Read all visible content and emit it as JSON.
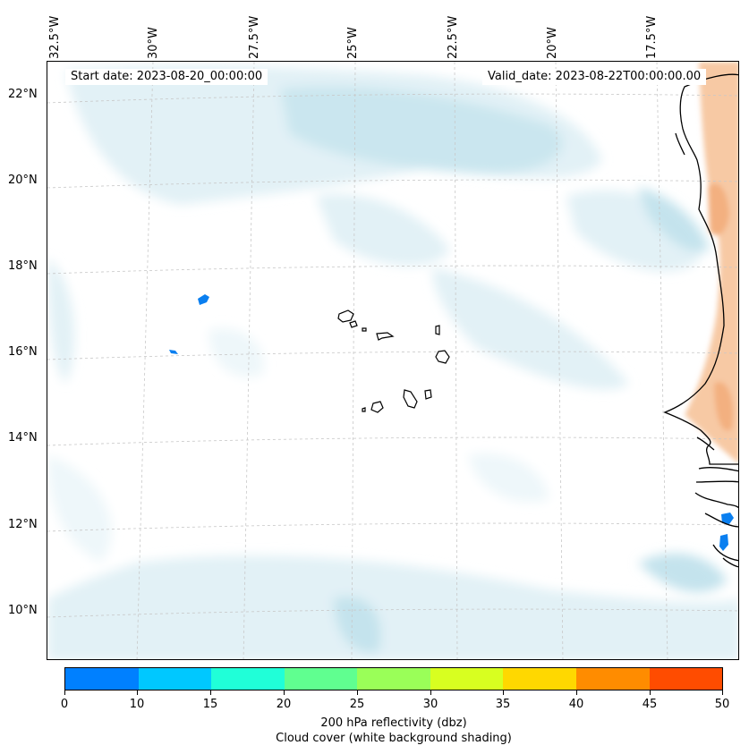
{
  "map": {
    "start_date": "Start date: 2023-08-20_00:00:00",
    "valid_date": "Valid_date: 2023-08-22T00:00:00.00",
    "lon_labels": [
      "32.5°W",
      "30°W",
      "27.5°W",
      "25°W",
      "22.5°W",
      "20°W",
      "17.5°W"
    ],
    "lat_labels": [
      "22°N",
      "20°N",
      "18°N",
      "16°N",
      "14°N",
      "12°N",
      "10°N"
    ],
    "region": "Cabo Verde islands and West African coast"
  },
  "colorbar": {
    "ticks": [
      "0",
      "10",
      "15",
      "20",
      "25",
      "30",
      "35",
      "40",
      "45",
      "50"
    ],
    "colors": [
      "#0080ff",
      "#00c8ff",
      "#20ffd8",
      "#60ff90",
      "#9aff58",
      "#d8ff20",
      "#ffd800",
      "#ff8c00",
      "#ff4c00"
    ],
    "title_line1": "200 hPa reflectivity (dbz)",
    "title_line2": "Cloud cover (white background shading)"
  },
  "colors": {
    "cloud_light": "#e2f1f6",
    "cloud_mid": "#c4e3ed",
    "land_shade": "#f7c9a4",
    "land_shade_dark": "#f3b080",
    "grid": "#c8c8c8"
  }
}
